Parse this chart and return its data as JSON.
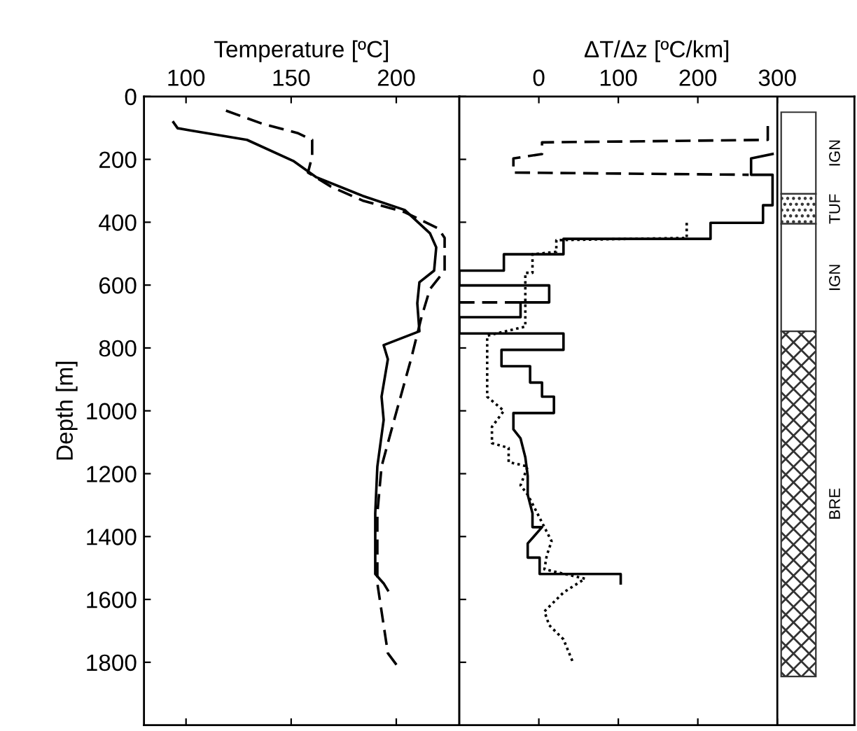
{
  "chart_data": [
    {
      "type": "line",
      "xlabel": "Temperature [ºC]",
      "ylabel": "Depth [m]",
      "xlim": [
        80,
        230
      ],
      "xticks": [
        100,
        150,
        200
      ],
      "ylim": [
        2000,
        0
      ],
      "yticks": [
        0,
        200,
        400,
        600,
        800,
        1000,
        1200,
        1400,
        1600,
        1800
      ],
      "series": [
        {
          "color": "#000000",
          "line_style": "solid",
          "x": [
            94,
            96,
            102,
            129,
            151,
            162,
            184,
            204,
            216,
            219,
            218,
            211,
            210,
            211,
            194,
            196,
            193,
            194,
            191,
            190,
            190,
            194,
            196
          ],
          "values": [
            82,
            101,
            108,
            138,
            205,
            257,
            316,
            361,
            435,
            480,
            554,
            591,
            658,
            747,
            791,
            836,
            955,
            1029,
            1177,
            1326,
            1519,
            1549,
            1571
          ]
        },
        {
          "color": "#000000",
          "line_style": "dashed",
          "x": [
            119,
            136,
            153,
            160,
            160,
            158,
            169,
            184,
            204,
            220,
            223,
            223,
            216,
            212,
            207,
            199,
            193,
            191,
            191,
            196,
            201
          ],
          "values": [
            45,
            86,
            116,
            138,
            190,
            242,
            287,
            331,
            368,
            420,
            450,
            554,
            613,
            702,
            836,
            1029,
            1177,
            1326,
            1549,
            1771,
            1816
          ]
        }
      ]
    },
    {
      "type": "line",
      "xlabel": "ΔT/Δz [ºC/km]",
      "xlim": [
        -100,
        397
      ],
      "xticks": [
        0,
        100,
        200,
        300
      ],
      "ylim": [
        2000,
        0
      ],
      "yticks": [
        0,
        200,
        400,
        600,
        800,
        1000,
        1200,
        1400,
        1600,
        1800
      ],
      "tick_labels": "x",
      "ref_lines": [
        {
          "axis": "x",
          "value": 300,
          "color": "#000000"
        }
      ],
      "bands": [
        {
          "axis": "y",
          "from": 50,
          "to": 310,
          "label": "IGN"
        },
        {
          "axis": "y",
          "from": 310,
          "to": 405,
          "label": "TUF"
        },
        {
          "axis": "y",
          "from": 405,
          "to": 747,
          "label": "IGN"
        },
        {
          "axis": "y",
          "from": 747,
          "to": 1845,
          "label": "BRE"
        }
      ],
      "series": [
        {
          "color": "#000000",
          "line_style": "solid",
          "x": [
            294,
            267,
            267,
            294,
            294,
            282,
            282,
            216,
            216,
            31,
            31,
            -44,
            -44,
            -100,
            -100,
            13,
            13,
            -23,
            -23,
            -100,
            -100,
            31,
            31,
            -47,
            -47,
            -11,
            -11,
            4,
            4,
            19,
            19,
            -32,
            -32,
            -23,
            -17,
            -14,
            -14,
            -8,
            -8,
            4,
            -14,
            -14,
            1,
            1,
            103,
            103
          ],
          "values": [
            183,
            197,
            249,
            249,
            346,
            346,
            402,
            402,
            453,
            453,
            502,
            502,
            554,
            554,
            601,
            601,
            655,
            655,
            702,
            702,
            754,
            754,
            806,
            806,
            858,
            858,
            910,
            910,
            955,
            955,
            1007,
            1007,
            1059,
            1088,
            1148,
            1207,
            1267,
            1326,
            1370,
            1370,
            1422,
            1467,
            1467,
            1519,
            1519,
            1549
          ]
        },
        {
          "color": "#000000",
          "line_style": "dashed",
          "x": [
            288,
            288,
            4,
            4,
            -32,
            -32,
            264,
            null,
            -100,
            -23
          ],
          "values": [
            94,
            138,
            146,
            183,
            197,
            242,
            249,
            null,
            655,
            655
          ]
        },
        {
          "color": "#000000",
          "line_style": "dotted",
          "x": [
            186,
            186,
            22,
            22,
            -8,
            -8,
            -17,
            -17,
            -65,
            -65,
            -44,
            -59,
            -59,
            -38,
            -38,
            -14,
            -23,
            -14,
            -8,
            10,
            16,
            10,
            7,
            58,
            31,
            7,
            13,
            31,
            43
          ],
          "values": [
            402,
            450,
            457,
            494,
            502,
            561,
            561,
            732,
            761,
            955,
            1000,
            1051,
            1103,
            1118,
            1163,
            1177,
            1237,
            1267,
            1296,
            1385,
            1415,
            1460,
            1504,
            1534,
            1578,
            1638,
            1682,
            1727,
            1801
          ]
        }
      ]
    }
  ]
}
